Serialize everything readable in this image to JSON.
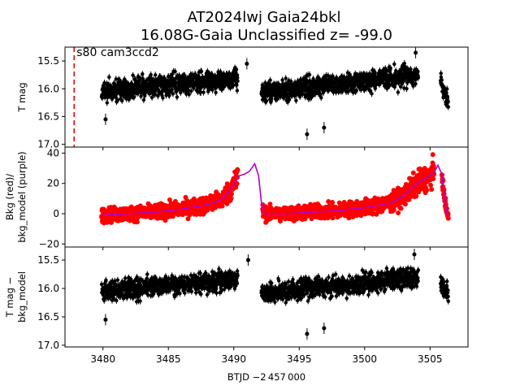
{
  "chart_data": {
    "title": "AT2024lwj  Gaia24bkl",
    "subtitle": "16.08G-Gaia Unclassified z= -99.0",
    "xlabel": "BTJD −2 457 000",
    "x_ticks": [
      3480,
      3485,
      3490,
      3495,
      3500,
      3505
    ],
    "xlim": [
      3477.1,
      3507.9
    ],
    "panels": [
      {
        "type": "scatter",
        "ylabel": "T mag",
        "ylim": [
          17.05,
          15.25
        ],
        "y_ticks": [
          "15.5",
          "16.0",
          "16.5",
          "17.0"
        ],
        "y_tick_values": [
          15.5,
          16.0,
          16.5,
          17.0
        ],
        "annotation": "s80 cam3ccd2",
        "marker_line_x": 3477.8,
        "marker_line_color": "#e00000",
        "point_color": "#000000",
        "segments": [
          {
            "x0": 3479.9,
            "x1": 3490.3,
            "center_start": 16.05,
            "center_end": 15.8,
            "spread": 0.32
          },
          {
            "x0": 3492.1,
            "x1": 3504.1,
            "center_start": 16.08,
            "center_end": 15.75,
            "spread": 0.32
          },
          {
            "x0": 3505.8,
            "x1": 3506.4,
            "center_start": 15.9,
            "center_end": 16.2,
            "spread": 0.3
          }
        ],
        "outliers": [
          [
            3495.6,
            16.82
          ],
          [
            3480.2,
            16.55
          ],
          [
            3496.9,
            16.7
          ],
          [
            3491.0,
            15.55
          ],
          [
            3503.9,
            15.35
          ]
        ]
      },
      {
        "type": "scatter+line",
        "ylabel": "Bkg (red)/\nbkg_model (purple)",
        "ylabel_lines": [
          "Bkg (red)/",
          "bkg_model (purple)"
        ],
        "ylim": [
          -22,
          44
        ],
        "y_ticks": [
          "−20",
          "0",
          "20",
          "40"
        ],
        "y_tick_values": [
          -20,
          0,
          20,
          40
        ],
        "point_color": "#ff0000",
        "line_color": "#b000d0",
        "model_line": [
          [
            3479.9,
            -1
          ],
          [
            3482.0,
            0
          ],
          [
            3484.0,
            1
          ],
          [
            3486.0,
            3
          ],
          [
            3488.0,
            6
          ],
          [
            3489.0,
            9
          ],
          [
            3489.6,
            14
          ],
          [
            3490.0,
            19
          ],
          [
            3490.4,
            25
          ],
          [
            3490.8,
            26
          ],
          [
            3491.2,
            28
          ],
          [
            3491.6,
            33
          ],
          [
            3491.9,
            25
          ],
          [
            3492.1,
            8
          ],
          [
            3492.3,
            0
          ],
          [
            3494.0,
            0
          ],
          [
            3496.0,
            1
          ],
          [
            3498.0,
            2
          ],
          [
            3500.0,
            4
          ],
          [
            3502.0,
            7
          ],
          [
            3503.0,
            12
          ],
          [
            3504.0,
            20
          ],
          [
            3504.8,
            24
          ],
          [
            3505.3,
            27
          ],
          [
            3505.6,
            32
          ],
          [
            3505.9,
            26
          ],
          [
            3506.1,
            10
          ],
          [
            3506.3,
            0
          ],
          [
            3506.4,
            -2
          ]
        ],
        "bkg_segments": [
          {
            "x0": 3479.9,
            "x1": 3490.3,
            "spread": 8
          },
          {
            "x0": 3492.2,
            "x1": 3505.3,
            "spread": 8
          },
          {
            "x0": 3505.9,
            "x1": 3506.4,
            "spread": 4
          }
        ]
      },
      {
        "type": "scatter",
        "ylabel": "T mag −\nbkg_model",
        "ylabel_lines": [
          "T mag −",
          "bkg_model"
        ],
        "ylim": [
          17.03,
          15.27
        ],
        "y_ticks": [
          "15.5",
          "16.0",
          "16.5",
          "17.0"
        ],
        "y_tick_values": [
          15.5,
          16.0,
          16.5,
          17.0
        ],
        "point_color": "#000000",
        "segments": [
          {
            "x0": 3479.9,
            "x1": 3490.3,
            "center_start": 16.05,
            "center_end": 15.85,
            "spread": 0.3
          },
          {
            "x0": 3492.1,
            "x1": 3504.1,
            "center_start": 16.1,
            "center_end": 15.8,
            "spread": 0.3
          },
          {
            "x0": 3505.8,
            "x1": 3506.4,
            "center_start": 15.9,
            "center_end": 16.1,
            "spread": 0.25
          }
        ],
        "outliers": [
          [
            3495.6,
            16.8
          ],
          [
            3480.2,
            16.55
          ],
          [
            3496.9,
            16.7
          ],
          [
            3491.1,
            15.5
          ],
          [
            3503.8,
            15.4
          ]
        ]
      }
    ]
  }
}
